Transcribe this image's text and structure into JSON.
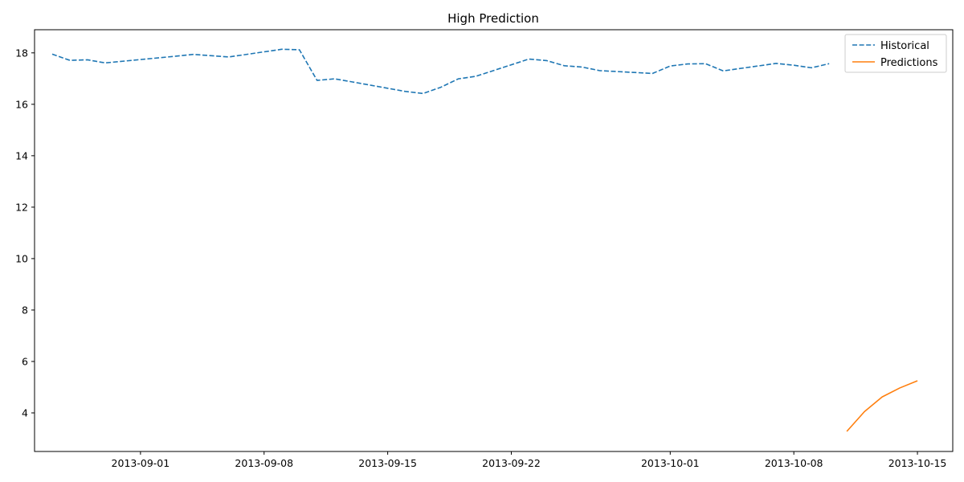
{
  "chart_data": {
    "type": "line",
    "title": "High Prediction",
    "xlabel": "",
    "ylabel": "",
    "x_axis": {
      "scale": "date",
      "range": [
        "2013-08-26",
        "2013-10-17"
      ],
      "ticks": [
        "2013-09-01",
        "2013-09-08",
        "2013-09-15",
        "2013-09-22",
        "2013-10-01",
        "2013-10-08",
        "2013-10-15"
      ]
    },
    "y_axis": {
      "range": [
        2.5,
        18.9
      ],
      "ticks": [
        4,
        6,
        8,
        10,
        12,
        14,
        16,
        18
      ]
    },
    "grid": false,
    "legend_position": "top-right",
    "series": [
      {
        "name": "Historical",
        "color": "#1f77b4",
        "style": "dashed",
        "points": [
          [
            "2013-08-27",
            17.95
          ],
          [
            "2013-08-28",
            17.71
          ],
          [
            "2013-08-29",
            17.73
          ],
          [
            "2013-08-30",
            17.61
          ],
          [
            "2013-09-03",
            17.87
          ],
          [
            "2013-09-04",
            17.94
          ],
          [
            "2013-09-05",
            17.89
          ],
          [
            "2013-09-06",
            17.84
          ],
          [
            "2013-09-09",
            18.14
          ],
          [
            "2013-09-10",
            18.12
          ],
          [
            "2013-09-11",
            16.93
          ],
          [
            "2013-09-12",
            16.99
          ],
          [
            "2013-09-13",
            16.87
          ],
          [
            "2013-09-16",
            16.5
          ],
          [
            "2013-09-17",
            16.42
          ],
          [
            "2013-09-18",
            16.66
          ],
          [
            "2013-09-19",
            16.99
          ],
          [
            "2013-09-20",
            17.09
          ],
          [
            "2013-09-23",
            17.76
          ],
          [
            "2013-09-24",
            17.7
          ],
          [
            "2013-09-25",
            17.5
          ],
          [
            "2013-09-26",
            17.45
          ],
          [
            "2013-09-27",
            17.31
          ],
          [
            "2013-09-30",
            17.2
          ],
          [
            "2013-10-01",
            17.49
          ],
          [
            "2013-10-02",
            17.57
          ],
          [
            "2013-10-03",
            17.58
          ],
          [
            "2013-10-04",
            17.3
          ],
          [
            "2013-10-07",
            17.59
          ],
          [
            "2013-10-08",
            17.52
          ],
          [
            "2013-10-09",
            17.42
          ],
          [
            "2013-10-10",
            17.58
          ]
        ]
      },
      {
        "name": "Predictions",
        "color": "#ff7f0e",
        "style": "solid",
        "points": [
          [
            "2013-10-11",
            3.28
          ],
          [
            "2013-10-12",
            4.05
          ],
          [
            "2013-10-13",
            4.62
          ],
          [
            "2013-10-14",
            4.97
          ],
          [
            "2013-10-15",
            5.25
          ]
        ]
      }
    ]
  }
}
